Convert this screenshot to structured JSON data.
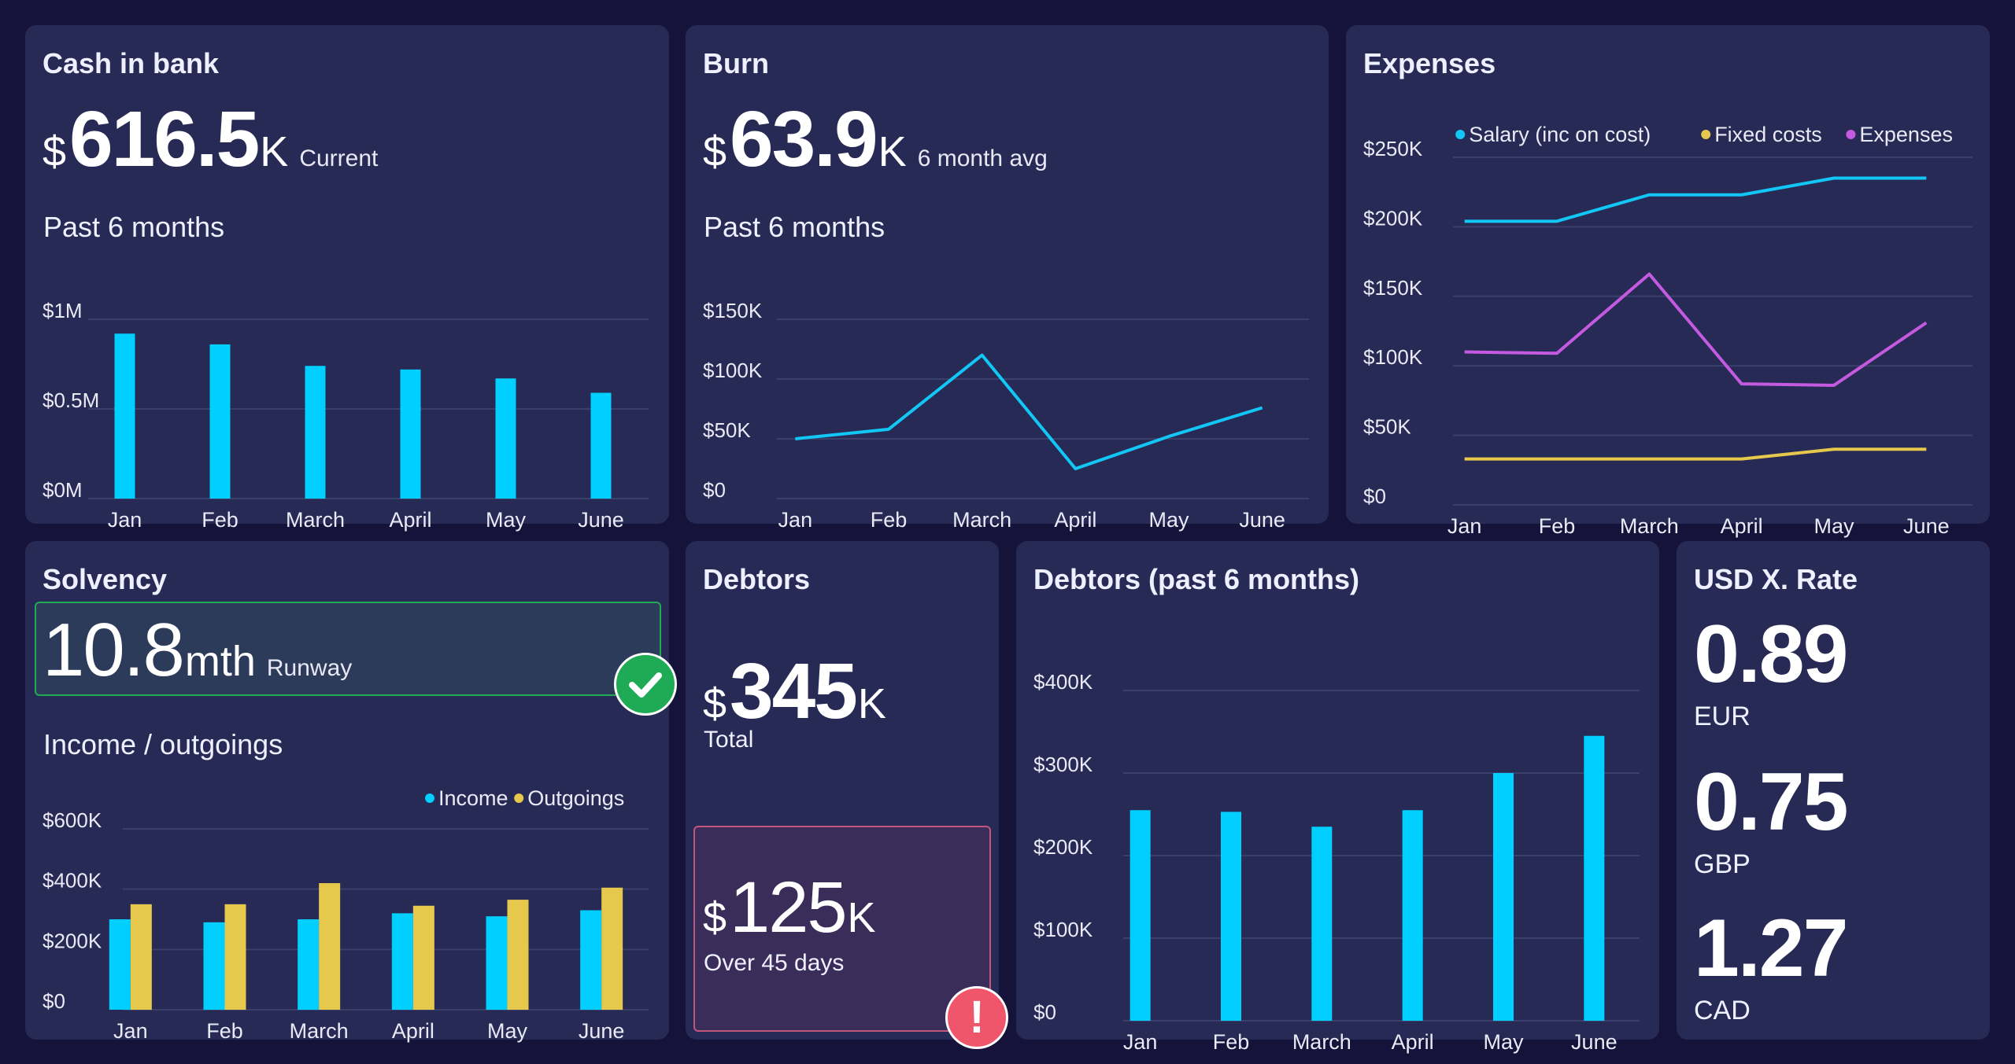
{
  "cash": {
    "title": "Cash in bank",
    "currency": "$",
    "value": "616.5",
    "unit": "K",
    "desc": "Current",
    "subtitle": "Past 6 months",
    "chart_data": {
      "type": "bar",
      "categories": [
        "Jan",
        "Feb",
        "March",
        "April",
        "May",
        "June"
      ],
      "values": [
        0.92,
        0.86,
        0.74,
        0.72,
        0.67,
        0.59
      ],
      "ylim": [
        0,
        1
      ],
      "yticks": [
        {
          "v": 0,
          "label": "$0M"
        },
        {
          "v": 0.5,
          "label": "$0.5M"
        },
        {
          "v": 1,
          "label": "$1M"
        }
      ],
      "color": "#00cfff"
    }
  },
  "burn": {
    "title": "Burn",
    "currency": "$",
    "value": "63.9",
    "unit": "K",
    "desc": "6 month avg",
    "subtitle": "Past 6 months",
    "chart_data": {
      "type": "line",
      "categories": [
        "Jan",
        "Feb",
        "March",
        "April",
        "May",
        "June"
      ],
      "values": [
        50,
        58,
        120,
        25,
        52,
        76
      ],
      "ylim": [
        0,
        150
      ],
      "yticks": [
        {
          "v": 0,
          "label": "$0"
        },
        {
          "v": 50,
          "label": "$50K"
        },
        {
          "v": 100,
          "label": "$100K"
        },
        {
          "v": 150,
          "label": "$150K"
        }
      ],
      "color": "#12c7f5"
    }
  },
  "expenses": {
    "title": "Expenses",
    "chart_data": {
      "type": "line",
      "categories": [
        "Jan",
        "Feb",
        "March",
        "April",
        "May",
        "June"
      ],
      "series": [
        {
          "name": "Salary (inc on cost)",
          "color": "#12c7f5",
          "values": [
            204,
            204,
            223,
            223,
            235,
            235
          ]
        },
        {
          "name": "Fixed costs",
          "color": "#e5c84c",
          "values": [
            33,
            33,
            33,
            33,
            40,
            40
          ]
        },
        {
          "name": "Expenses",
          "color": "#c45ae0",
          "values": [
            110,
            109,
            166,
            87,
            86,
            131
          ]
        }
      ],
      "ylim": [
        0,
        250
      ],
      "yticks": [
        {
          "v": 0,
          "label": "$0"
        },
        {
          "v": 50,
          "label": "$50K"
        },
        {
          "v": 100,
          "label": "$100K"
        },
        {
          "v": 150,
          "label": "$150K"
        },
        {
          "v": 200,
          "label": "$200K"
        },
        {
          "v": 250,
          "label": "$250K"
        }
      ],
      "legend": "top-right"
    }
  },
  "solvency": {
    "title": "Solvency",
    "value": "10.8",
    "unit": "mth",
    "desc": "Runway",
    "subtitle": "Income / outgoings",
    "status_color": "#1faa55",
    "chart_data": {
      "type": "bar",
      "categories": [
        "Jan",
        "Feb",
        "March",
        "April",
        "May",
        "June"
      ],
      "series": [
        {
          "name": "Income",
          "color": "#00cfff",
          "values": [
            300,
            290,
            300,
            320,
            310,
            330
          ]
        },
        {
          "name": "Outgoings",
          "color": "#e5c84c",
          "values": [
            350,
            350,
            420,
            345,
            365,
            405
          ]
        }
      ],
      "ylim": [
        0,
        600
      ],
      "yticks": [
        {
          "v": 0,
          "label": "$0"
        },
        {
          "v": 200,
          "label": "$200K"
        },
        {
          "v": 400,
          "label": "$400K"
        },
        {
          "v": 600,
          "label": "$600K"
        }
      ],
      "legend": "top-right"
    }
  },
  "debtors": {
    "title": "Debtors",
    "total": {
      "currency": "$",
      "value": "345",
      "unit": "K",
      "desc": "Total"
    },
    "overdue": {
      "currency": "$",
      "value": "125",
      "unit": "K",
      "desc": "Over 45 days",
      "badge": "!"
    },
    "alert_color": "#f0566b"
  },
  "debtors6": {
    "title": "Debtors (past 6 months)",
    "chart_data": {
      "type": "bar",
      "categories": [
        "Jan",
        "Feb",
        "March",
        "April",
        "May",
        "June"
      ],
      "values": [
        255,
        253,
        235,
        255,
        300,
        345
      ],
      "ylim": [
        0,
        400
      ],
      "yticks": [
        {
          "v": 0,
          "label": "$0"
        },
        {
          "v": 100,
          "label": "$100K"
        },
        {
          "v": 200,
          "label": "$200K"
        },
        {
          "v": 300,
          "label": "$300K"
        },
        {
          "v": 400,
          "label": "$400K"
        }
      ],
      "color": "#00cfff"
    }
  },
  "xrate": {
    "title": "USD X. Rate",
    "rates": [
      {
        "value": "0.89",
        "currency": "EUR"
      },
      {
        "value": "0.75",
        "currency": "GBP"
      },
      {
        "value": "1.27",
        "currency": "CAD"
      }
    ]
  }
}
